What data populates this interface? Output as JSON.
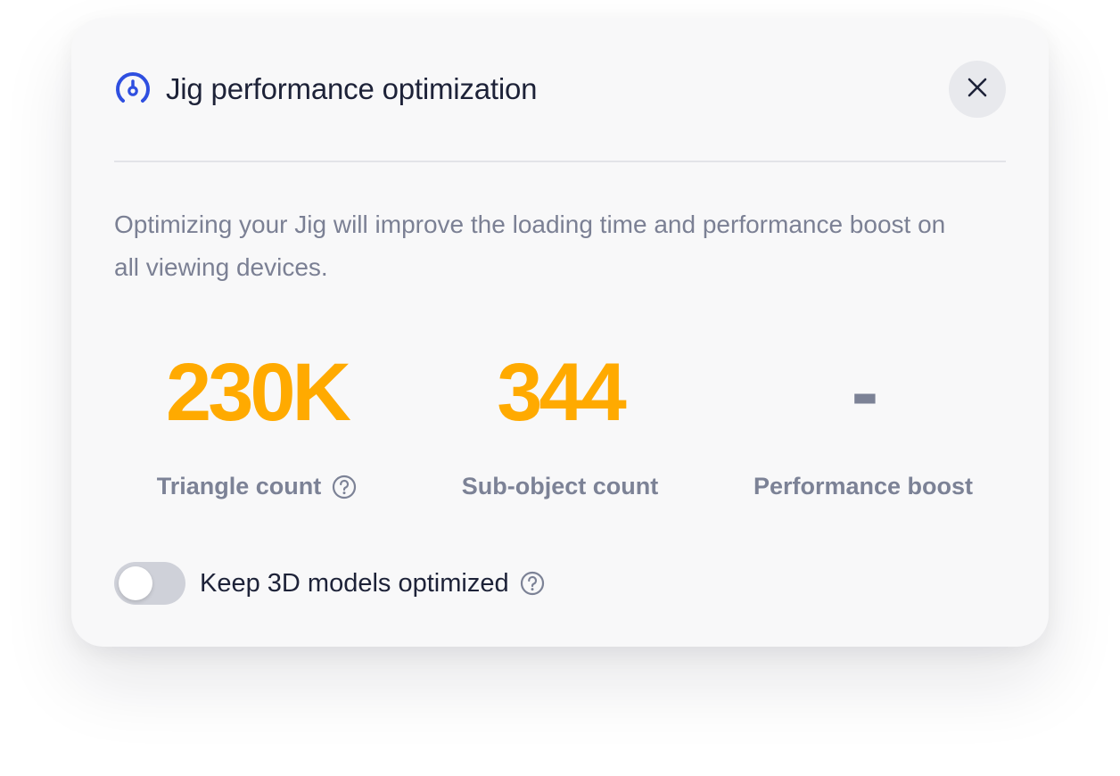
{
  "dialog": {
    "title": "Jig performance optimization",
    "title_icon": "gauge-icon",
    "close_icon": "close-icon",
    "description": "Optimizing your Jig will improve the loading time and performance boost on all viewing devices."
  },
  "stats": [
    {
      "value": "230K",
      "label": "Triangle count",
      "has_help": true,
      "color": "#ffaa00"
    },
    {
      "value": "344",
      "label": "Sub-object count",
      "has_help": false,
      "color": "#ffaa00"
    },
    {
      "value": "-",
      "label": "Performance boost",
      "has_help": false,
      "color": "#7c8296"
    }
  ],
  "toggle": {
    "label": "Keep 3D models optimized",
    "enabled": false,
    "help_icon": "help-icon"
  },
  "colors": {
    "accent": "#2f4fe0",
    "stat_highlight": "#ffaa00",
    "muted_text": "#7b8094",
    "primary_text": "#1d2238"
  }
}
